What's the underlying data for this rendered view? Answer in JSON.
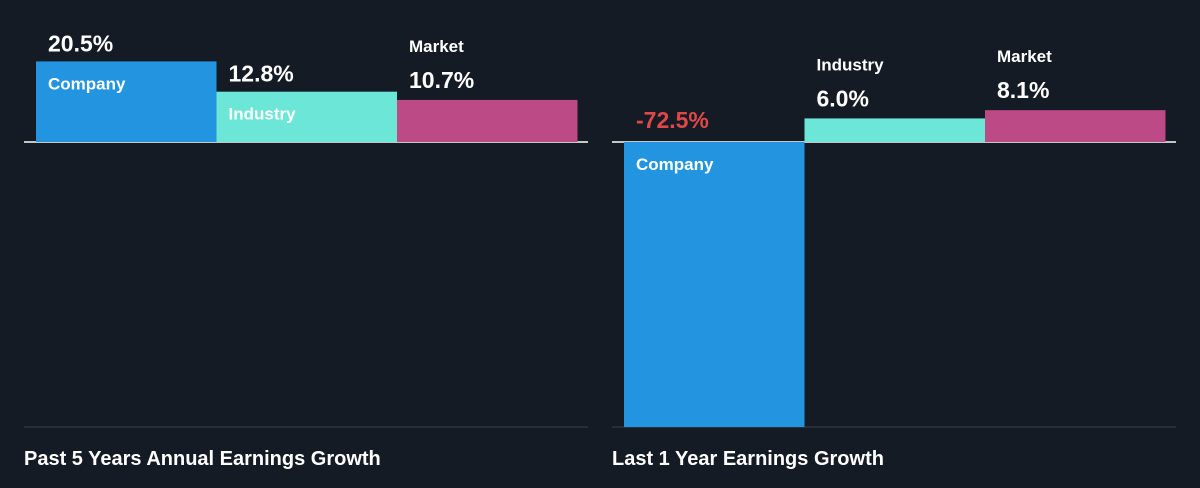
{
  "colors": {
    "background": "#151b24",
    "company": "#2394e0",
    "industry": "#6ce6d6",
    "market": "#bb4a86",
    "axis": "#ffffff",
    "baseline": "#3a414b",
    "text": "#ffffff",
    "label_dark": "#2e3440",
    "negative": "#e04848"
  },
  "chart_data": [
    {
      "type": "bar",
      "title": "Past 5 Years Annual Earnings Growth",
      "categories": [
        "Company",
        "Industry",
        "Market"
      ],
      "values": [
        20.5,
        12.8,
        10.7
      ],
      "value_labels": [
        "20.5%",
        "12.8%",
        "10.7%"
      ],
      "unit": "%",
      "ylim": [
        -72.5,
        20.5
      ],
      "grid": false,
      "legend": "none"
    },
    {
      "type": "bar",
      "title": "Last 1 Year Earnings Growth",
      "categories": [
        "Company",
        "Industry",
        "Market"
      ],
      "values": [
        -72.5,
        6.0,
        8.1
      ],
      "value_labels": [
        "-72.5%",
        "6.0%",
        "8.1%"
      ],
      "unit": "%",
      "ylim": [
        -72.5,
        20.5
      ],
      "grid": false,
      "legend": "none"
    }
  ]
}
